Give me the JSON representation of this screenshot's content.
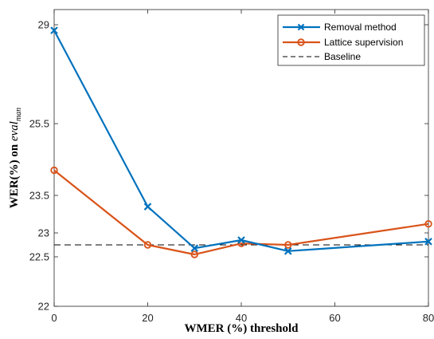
{
  "chart_data": {
    "type": "line",
    "xlabel": "WMER (%) threshold",
    "ylabel_main": "WER(%) on ",
    "ylabel_italic": "eval",
    "ylabel_sub": "man",
    "xlim": [
      0,
      80
    ],
    "ylim": [
      22,
      29
    ],
    "y_scale": "piecewise-nonlinear",
    "x_ticks": [
      0,
      20,
      40,
      60,
      80
    ],
    "x_tick_labels": [
      "0",
      "20",
      "40",
      "60",
      "80"
    ],
    "y_ticks": [
      22,
      22.5,
      23,
      23.5,
      25.5,
      29
    ],
    "y_tick_labels": [
      "22",
      "22.5",
      "23",
      "23.5",
      "25.5",
      "29"
    ],
    "grid": false,
    "legend_position": "top-right",
    "series": [
      {
        "name": "Removal method",
        "color": "#0072BD",
        "marker": "x",
        "x": [
          0,
          20,
          30,
          40,
          50,
          80
        ],
        "values": [
          28.8,
          23.35,
          22.68,
          22.85,
          22.62,
          22.82
        ]
      },
      {
        "name": "Lattice supervision",
        "color": "#D95319",
        "marker": "o",
        "x": [
          0,
          20,
          30,
          40,
          50,
          80
        ],
        "values": [
          24.2,
          22.75,
          22.55,
          22.78,
          22.75,
          23.12
        ]
      },
      {
        "name": "Baseline",
        "color": "#000000",
        "marker": "none",
        "dashed": true,
        "x": [
          0,
          80
        ],
        "values": [
          22.75,
          22.75
        ]
      }
    ]
  }
}
